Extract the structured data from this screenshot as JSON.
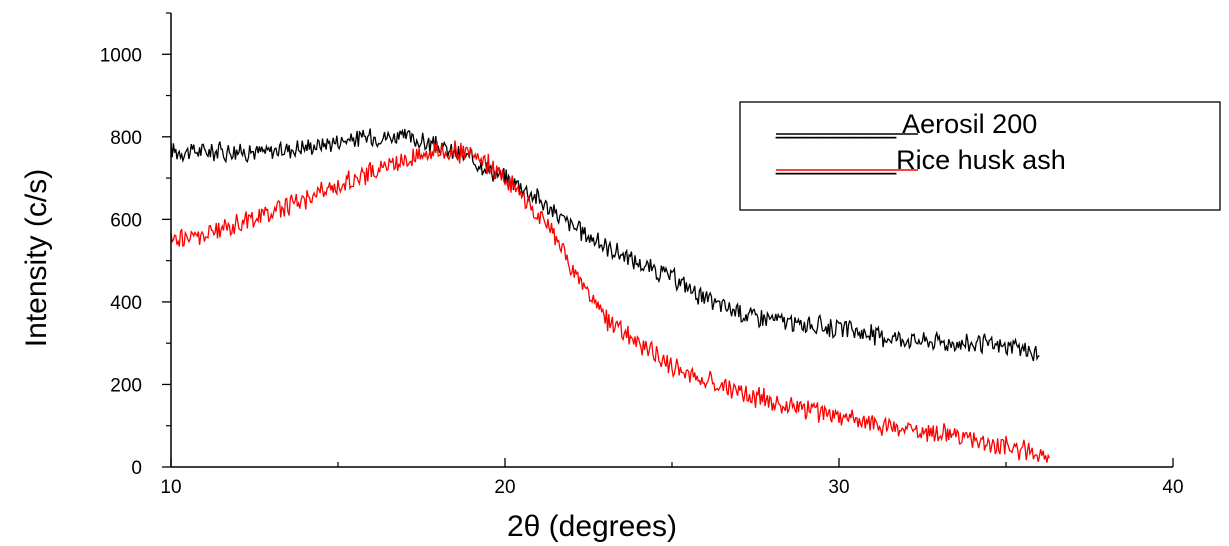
{
  "chart_data": {
    "type": "line",
    "title": "",
    "xlabel": "2θ (degrees)",
    "ylabel": "Intensity (c/s)",
    "xlim": [
      10,
      40
    ],
    "ylim": [
      0,
      1100
    ],
    "x_ticks": [
      "10",
      "20",
      "30",
      "40"
    ],
    "y_ticks": [
      "0",
      "200",
      "400",
      "600",
      "800",
      "1000"
    ],
    "grid": false,
    "legend_position": "top-right",
    "series": [
      {
        "name": "________ Aerosil 200",
        "color": "#000000",
        "x": [
          10,
          11,
          12,
          13,
          14,
          15,
          16,
          17,
          18,
          19,
          20,
          20.5,
          21,
          21.5,
          22,
          22.5,
          23,
          23.5,
          24,
          24.5,
          25,
          25.5,
          26,
          26.5,
          27,
          27.5,
          28,
          28.5,
          29,
          29.5,
          30,
          30.5,
          31,
          31.5,
          32,
          32.5,
          33,
          33.5,
          34,
          34.5,
          35,
          35.5,
          36
        ],
        "values": [
          765,
          765,
          765,
          765,
          775,
          790,
          800,
          800,
          775,
          745,
          700,
          680,
          650,
          615,
          585,
          560,
          535,
          515,
          495,
          475,
          460,
          435,
          405,
          390,
          375,
          365,
          360,
          350,
          345,
          340,
          335,
          330,
          320,
          315,
          310,
          305,
          303,
          300,
          298,
          295,
          292,
          285,
          270
        ]
      },
      {
        "name": "________Rice husk ash",
        "color": "#ff0000",
        "x": [
          10,
          11,
          12,
          13,
          14,
          15,
          16,
          17,
          18,
          19,
          19.5,
          20,
          20.5,
          21,
          21.5,
          22,
          22.5,
          23,
          23.5,
          24,
          24.5,
          25,
          25.5,
          26,
          26.5,
          27,
          27.5,
          28,
          28.5,
          29,
          29.5,
          30,
          30.5,
          31,
          31.5,
          32,
          32.5,
          33,
          33.5,
          34,
          34.5,
          35,
          35.5,
          36,
          36.3
        ],
        "values": [
          550,
          560,
          590,
          620,
          650,
          680,
          715,
          745,
          770,
          755,
          730,
          700,
          660,
          610,
          560,
          480,
          420,
          360,
          330,
          300,
          270,
          245,
          225,
          210,
          195,
          180,
          170,
          160,
          150,
          140,
          130,
          120,
          112,
          105,
          100,
          95,
          88,
          82,
          75,
          65,
          58,
          50,
          42,
          32,
          22
        ]
      }
    ]
  }
}
